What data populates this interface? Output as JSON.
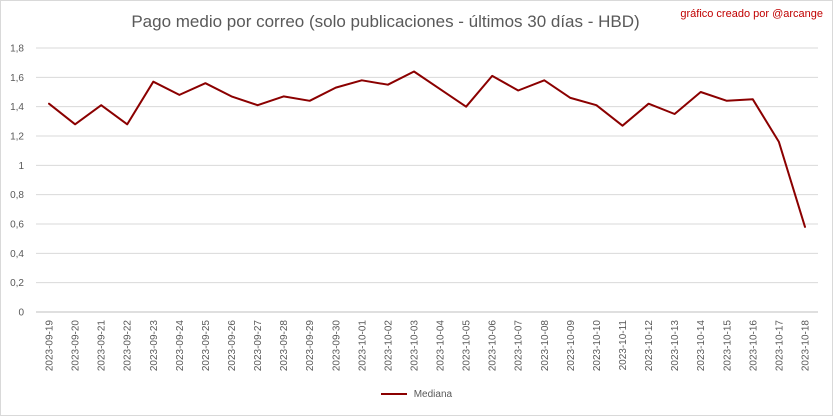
{
  "chart_data": {
    "type": "line",
    "title": "Pago medio por correo (solo publicaciones - últimos 30 días - HBD)",
    "credit": "gráfico creado por @arcange",
    "xlabel": "",
    "ylabel": "",
    "ylim": [
      0,
      1.8
    ],
    "yticks": [
      "0",
      "0,2",
      "0,4",
      "0,6",
      "0,8",
      "1",
      "1,2",
      "1,4",
      "1,6",
      "1,8"
    ],
    "grid": true,
    "legend_position": "bottom",
    "categories": [
      "2023-09-19",
      "2023-09-20",
      "2023-09-21",
      "2023-09-22",
      "2023-09-23",
      "2023-09-24",
      "2023-09-25",
      "2023-09-26",
      "2023-09-27",
      "2023-09-28",
      "2023-09-29",
      "2023-09-30",
      "2023-10-01",
      "2023-10-02",
      "2023-10-03",
      "2023-10-04",
      "2023-10-05",
      "2023-10-06",
      "2023-10-07",
      "2023-10-08",
      "2023-10-09",
      "2023-10-10",
      "2023-10-11",
      "2023-10-12",
      "2023-10-13",
      "2023-10-14",
      "2023-10-15",
      "2023-10-16",
      "2023-10-17",
      "2023-10-18"
    ],
    "series": [
      {
        "name": "Mediana",
        "color": "#8b0000",
        "values": [
          1.42,
          1.28,
          1.41,
          1.28,
          1.57,
          1.48,
          1.56,
          1.47,
          1.41,
          1.47,
          1.44,
          1.53,
          1.58,
          1.55,
          1.64,
          1.52,
          1.4,
          1.61,
          1.51,
          1.58,
          1.46,
          1.41,
          1.27,
          1.42,
          1.35,
          1.5,
          1.44,
          1.45,
          1.16,
          0.58
        ]
      }
    ]
  }
}
